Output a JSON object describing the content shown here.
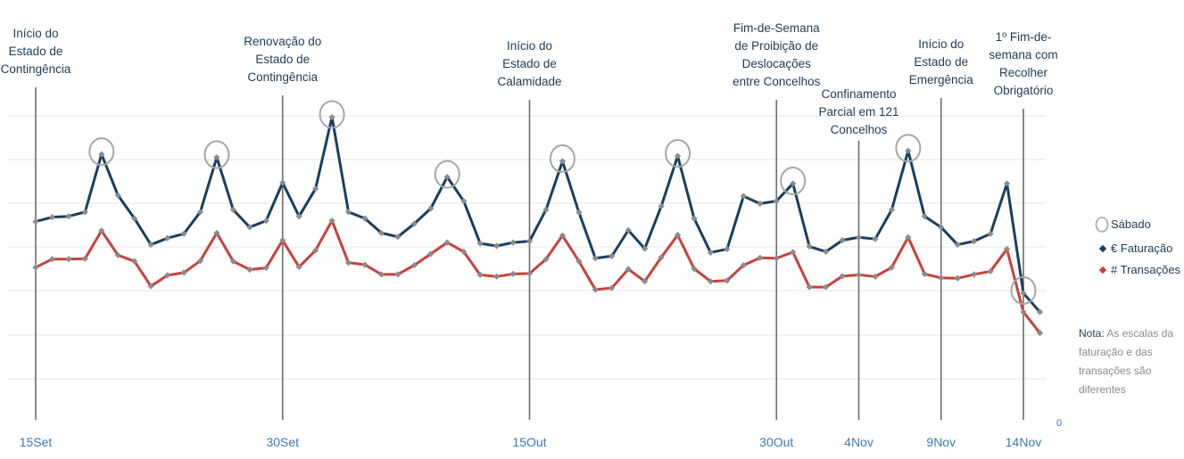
{
  "chart_data": {
    "type": "line",
    "x": [
      "15Set",
      "16Set",
      "17Set",
      "18Set",
      "19Set",
      "20Set",
      "21Set",
      "22Set",
      "23Set",
      "24Set",
      "25Set",
      "26Set",
      "27Set",
      "28Set",
      "29Set",
      "30Set",
      "1Out",
      "2Out",
      "3Out",
      "4Out",
      "5Out",
      "6Out",
      "7Out",
      "8Out",
      "9Out",
      "10Out",
      "11Out",
      "12Out",
      "13Out",
      "14Out",
      "15Out",
      "16Out",
      "17Out",
      "18Out",
      "19Out",
      "20Out",
      "21Out",
      "22Out",
      "23Out",
      "24Out",
      "25Out",
      "26Out",
      "27Out",
      "28Out",
      "29Out",
      "30Out",
      "31Out",
      "1Nov",
      "2Nov",
      "3Nov",
      "4Nov",
      "5Nov",
      "6Nov",
      "7Nov",
      "8Nov",
      "9Nov",
      "10Nov",
      "11Nov",
      "12Nov",
      "13Nov",
      "14Nov",
      "15Nov"
    ],
    "x_ticks": [
      "15Set",
      "30Set",
      "15Out",
      "30Out",
      "4Nov",
      "9Nov",
      "14Nov"
    ],
    "y_ticks": [
      "0"
    ],
    "series": [
      {
        "name": "€ Faturação",
        "color": "#1a3f5f",
        "values": [
          45.8,
          46.8,
          47.0,
          48.0,
          61.2,
          51.8,
          46.5,
          40.5,
          42.0,
          43.0,
          48.0,
          60.5,
          48.5,
          44.5,
          46.0,
          54.7,
          47.0,
          53.3,
          69.7,
          48.0,
          46.5,
          43.2,
          42.3,
          45.3,
          48.8,
          56.0,
          50.5,
          40.8,
          40.2,
          41.0,
          41.3,
          48.5,
          59.6,
          47.9,
          37.4,
          37.9,
          43.8,
          39.6,
          49.3,
          60.8,
          46.5,
          38.7,
          39.5,
          51.6,
          49.9,
          50.5,
          54.5,
          40.1,
          38.9,
          41.5,
          42.2,
          41.8,
          48.5,
          62.0,
          47.0,
          44.5,
          40.5,
          41.3,
          43.0,
          54.5,
          29.4,
          25.1
        ]
      },
      {
        "name": "# Transações",
        "color": "#c8413d",
        "values": [
          35.3,
          37.2,
          37.2,
          37.3,
          43.7,
          38.1,
          36.7,
          31.0,
          33.5,
          34.1,
          36.8,
          43.2,
          36.7,
          34.8,
          35.2,
          41.5,
          35.4,
          39.2,
          46.0,
          36.4,
          35.9,
          33.7,
          33.7,
          35.8,
          38.4,
          41.0,
          38.9,
          33.6,
          33.2,
          33.8,
          33.9,
          37.2,
          42.6,
          36.7,
          30.2,
          30.6,
          34.9,
          32.1,
          37.6,
          42.7,
          35.0,
          32.1,
          32.3,
          35.8,
          37.5,
          37.4,
          38.8,
          30.8,
          30.8,
          33.3,
          33.6,
          33.2,
          35.3,
          42.2,
          33.8,
          32.9,
          32.8,
          33.7,
          34.4,
          39.5,
          25.1,
          20.3
        ]
      }
    ],
    "saturday_markers": [
      "19Set",
      "26Set",
      "3Out",
      "10Out",
      "17Out",
      "24Out",
      "31Out",
      "7Nov",
      "14Nov"
    ],
    "events": [
      {
        "x": "15Set",
        "label": [
          "Início do",
          "Estado de",
          "Contingência"
        ]
      },
      {
        "x": "30Set",
        "label": [
          "Renovação do",
          "Estado de",
          "Contingência"
        ]
      },
      {
        "x": "15Out",
        "label": [
          "Início do",
          "Estado de",
          "Calamidade"
        ]
      },
      {
        "x": "30Out",
        "label": [
          "Fim-de-Semana",
          "de Proibição de",
          "Deslocações",
          "entre Concelhos"
        ]
      },
      {
        "x": "4Nov",
        "label": [
          "Confinamento",
          "Parcial em 121",
          "Concelhos"
        ]
      },
      {
        "x": "9Nov",
        "label": [
          "Início do",
          "Estado de",
          "Emergência"
        ]
      },
      {
        "x": "14Nov",
        "label": [
          "1º Fim-de-",
          "semana com",
          "Recolher",
          "Obrigatório"
        ]
      }
    ],
    "legend": {
      "position": "right",
      "items": [
        {
          "label": "Sábado",
          "marker": "circle-outline",
          "color": "#a6a6a6"
        },
        {
          "label": "€ Faturação",
          "marker": "diamond",
          "color": "#1a3f5f"
        },
        {
          "label": "# Transações",
          "marker": "diamond",
          "color": "#c8413d"
        }
      ]
    },
    "grid": true
  },
  "note": {
    "label": "Nota:",
    "text": "As escalas da faturação e das transações são diferentes"
  }
}
